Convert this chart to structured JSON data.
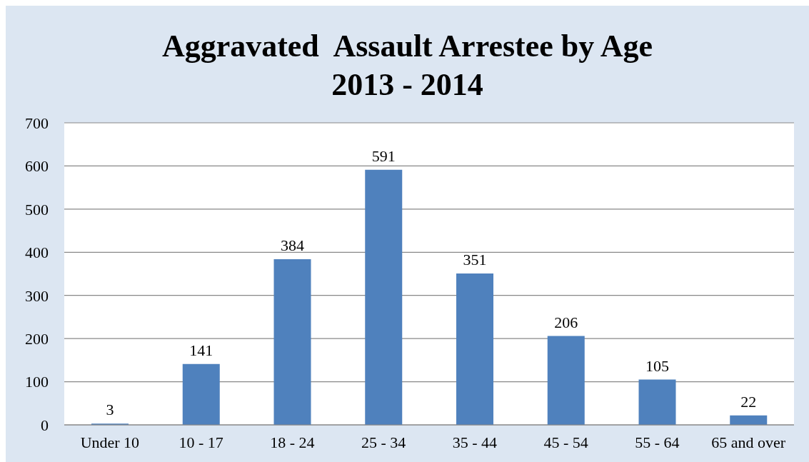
{
  "chart_data": {
    "type": "bar",
    "title": "Aggravated  Assault Arrestee by Age\n2013 - 2014",
    "categories": [
      "Under 10",
      "10 - 17",
      "18 - 24",
      "25 - 34",
      "35 - 44",
      "45 - 54",
      "55 - 64",
      "65 and over"
    ],
    "values": [
      3,
      141,
      384,
      591,
      351,
      206,
      105,
      22
    ],
    "color": "#4f81bd",
    "ylim": [
      0,
      700
    ],
    "yticks": [
      0,
      100,
      200,
      300,
      400,
      500,
      600,
      700
    ],
    "grid": "y",
    "data_labels": true
  }
}
